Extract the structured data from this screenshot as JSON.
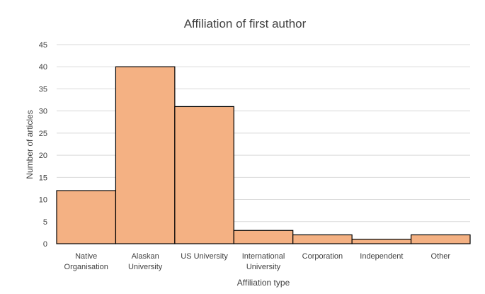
{
  "chart_data": {
    "type": "bar",
    "title": "Affiliation of first author",
    "xlabel": "Affiliation type",
    "ylabel": "Number of articles",
    "categories": [
      [
        "Native",
        "Organisation"
      ],
      [
        "Alaskan",
        "University"
      ],
      [
        "US University"
      ],
      [
        "International",
        "University"
      ],
      [
        "Corporation"
      ],
      [
        "Independent"
      ],
      [
        "Other"
      ]
    ],
    "values": [
      12,
      40,
      31,
      3,
      2,
      1,
      2
    ],
    "ylim": [
      0,
      45
    ],
    "yticks": [
      0,
      5,
      10,
      15,
      20,
      25,
      30,
      35,
      40,
      45
    ],
    "grid": true,
    "legend": "none",
    "bar_color": "#f4b183"
  }
}
